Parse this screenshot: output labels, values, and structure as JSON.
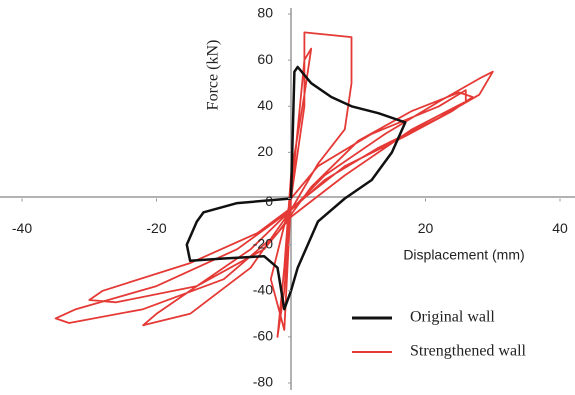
{
  "chart_data": {
    "type": "line",
    "x_label": "Displacement (mm)",
    "y_label": "Force (kN)",
    "xlim": [
      -40,
      40
    ],
    "ylim": [
      -80,
      80
    ],
    "xticks": [
      -40,
      -20,
      20,
      40
    ],
    "yticks": [
      -80,
      -60,
      -40,
      -20,
      0,
      20,
      40,
      60,
      80
    ],
    "series": [
      {
        "name": "Original wall",
        "color": "#111111",
        "x": [
          0,
          0.5,
          1,
          3,
          6,
          9,
          13,
          17,
          15,
          12,
          8,
          4,
          1,
          0,
          -1,
          -2,
          -4,
          -10,
          -15,
          -15.5,
          -14,
          -13,
          -8,
          0
        ],
        "values": [
          0,
          55,
          57,
          50,
          44,
          40,
          37,
          33,
          20,
          8,
          0,
          -10,
          -30,
          -40,
          -48,
          -30,
          -25,
          -26,
          -27,
          -20,
          -10,
          -6,
          -2,
          0
        ]
      },
      {
        "name": "Strengthened wall",
        "color": "#e53935",
        "x": [
          0,
          1,
          2,
          3,
          2,
          0,
          -1,
          -2,
          -1,
          0,
          2,
          2,
          9,
          9,
          8,
          4,
          0,
          -6,
          -15,
          -20,
          -22,
          -15,
          -6,
          0,
          5,
          14,
          22,
          28,
          30,
          28,
          22,
          13,
          5,
          0,
          -8,
          -20,
          -32,
          -35,
          -33,
          -22,
          -10,
          -2,
          3,
          10,
          18,
          25,
          27,
          24,
          17,
          8,
          1,
          -5,
          -15,
          -28,
          -30,
          -26,
          -14,
          -4,
          0,
          8,
          18,
          26,
          26,
          22,
          12,
          4,
          0,
          -3,
          -1,
          0
        ],
        "values": [
          0,
          30,
          60,
          65,
          45,
          10,
          -30,
          -60,
          -40,
          0,
          40,
          72,
          70,
          50,
          30,
          15,
          -5,
          -22,
          -40,
          -50,
          -55,
          -50,
          -30,
          -5,
          10,
          28,
          42,
          52,
          55,
          45,
          35,
          22,
          8,
          -5,
          -22,
          -38,
          -48,
          -52,
          -54,
          -48,
          -35,
          -15,
          5,
          25,
          38,
          46,
          44,
          38,
          27,
          14,
          -2,
          -15,
          -28,
          -40,
          -44,
          -45,
          -38,
          -22,
          -8,
          10,
          30,
          42,
          47,
          40,
          28,
          14,
          0,
          -35,
          -57,
          0
        ]
      }
    ]
  }
}
